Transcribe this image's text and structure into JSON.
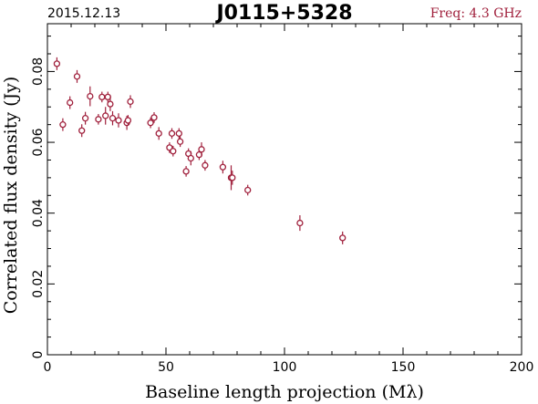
{
  "header": {
    "date": "2015.12.13",
    "source": "J0115+5328",
    "freq": "Freq: 4.3 GHz"
  },
  "colors": {
    "accent": "#a0203c",
    "axis": "#000000",
    "background": "#ffffff"
  },
  "chart_data": {
    "type": "scatter",
    "title": "J0115+5328",
    "xlabel": "Baseline length projection (Mλ)",
    "ylabel": "Correlated flux density (Jy)",
    "xlim": [
      0,
      200
    ],
    "ylim": [
      0,
      0.0935
    ],
    "x_ticks": [
      0,
      50,
      100,
      150,
      200
    ],
    "x_tick_labels": [
      "0",
      "50",
      "100",
      "150",
      "200"
    ],
    "y_ticks": [
      0,
      0.02,
      0.04,
      0.06,
      0.08
    ],
    "y_tick_labels": [
      "0",
      "0.02",
      "0.04",
      "0.06",
      "0.08"
    ],
    "grid": false,
    "legend": "none",
    "error_bars": true,
    "points": [
      {
        "x": 4.0,
        "y": 0.0822,
        "err": 0.0018
      },
      {
        "x": 6.5,
        "y": 0.065,
        "err": 0.0018
      },
      {
        "x": 9.5,
        "y": 0.0712,
        "err": 0.0018
      },
      {
        "x": 12.5,
        "y": 0.0786,
        "err": 0.0018
      },
      {
        "x": 14.5,
        "y": 0.0633,
        "err": 0.0018
      },
      {
        "x": 16.0,
        "y": 0.0668,
        "err": 0.0018
      },
      {
        "x": 18.0,
        "y": 0.073,
        "err": 0.0028
      },
      {
        "x": 21.5,
        "y": 0.0665,
        "err": 0.0015
      },
      {
        "x": 23.0,
        "y": 0.0728,
        "err": 0.0015
      },
      {
        "x": 24.5,
        "y": 0.0675,
        "err": 0.0025
      },
      {
        "x": 25.5,
        "y": 0.0728,
        "err": 0.0015
      },
      {
        "x": 26.5,
        "y": 0.0708,
        "err": 0.002
      },
      {
        "x": 27.5,
        "y": 0.0668,
        "err": 0.002
      },
      {
        "x": 30.0,
        "y": 0.0662,
        "err": 0.002
      },
      {
        "x": 33.5,
        "y": 0.0655,
        "err": 0.002
      },
      {
        "x": 34.0,
        "y": 0.0662,
        "err": 0.0015
      },
      {
        "x": 35.0,
        "y": 0.0715,
        "err": 0.0018
      },
      {
        "x": 43.5,
        "y": 0.0655,
        "err": 0.0015
      },
      {
        "x": 45.0,
        "y": 0.067,
        "err": 0.0015
      },
      {
        "x": 47.0,
        "y": 0.0625,
        "err": 0.0018
      },
      {
        "x": 51.5,
        "y": 0.0585,
        "err": 0.0015
      },
      {
        "x": 52.5,
        "y": 0.0625,
        "err": 0.0015
      },
      {
        "x": 53.0,
        "y": 0.0575,
        "err": 0.0015
      },
      {
        "x": 55.5,
        "y": 0.0625,
        "err": 0.0015
      },
      {
        "x": 56.0,
        "y": 0.0602,
        "err": 0.0015
      },
      {
        "x": 58.5,
        "y": 0.0518,
        "err": 0.0015
      },
      {
        "x": 59.5,
        "y": 0.0568,
        "err": 0.0015
      },
      {
        "x": 60.5,
        "y": 0.0555,
        "err": 0.002
      },
      {
        "x": 64.0,
        "y": 0.0565,
        "err": 0.0015
      },
      {
        "x": 65.0,
        "y": 0.058,
        "err": 0.002
      },
      {
        "x": 66.5,
        "y": 0.0535,
        "err": 0.0015
      },
      {
        "x": 74.0,
        "y": 0.053,
        "err": 0.0018
      },
      {
        "x": 77.5,
        "y": 0.05,
        "err": 0.0035
      },
      {
        "x": 78.0,
        "y": 0.05,
        "err": 0.002
      },
      {
        "x": 84.5,
        "y": 0.0465,
        "err": 0.0015
      },
      {
        "x": 106.5,
        "y": 0.0372,
        "err": 0.0022
      },
      {
        "x": 124.5,
        "y": 0.033,
        "err": 0.0018
      }
    ]
  }
}
